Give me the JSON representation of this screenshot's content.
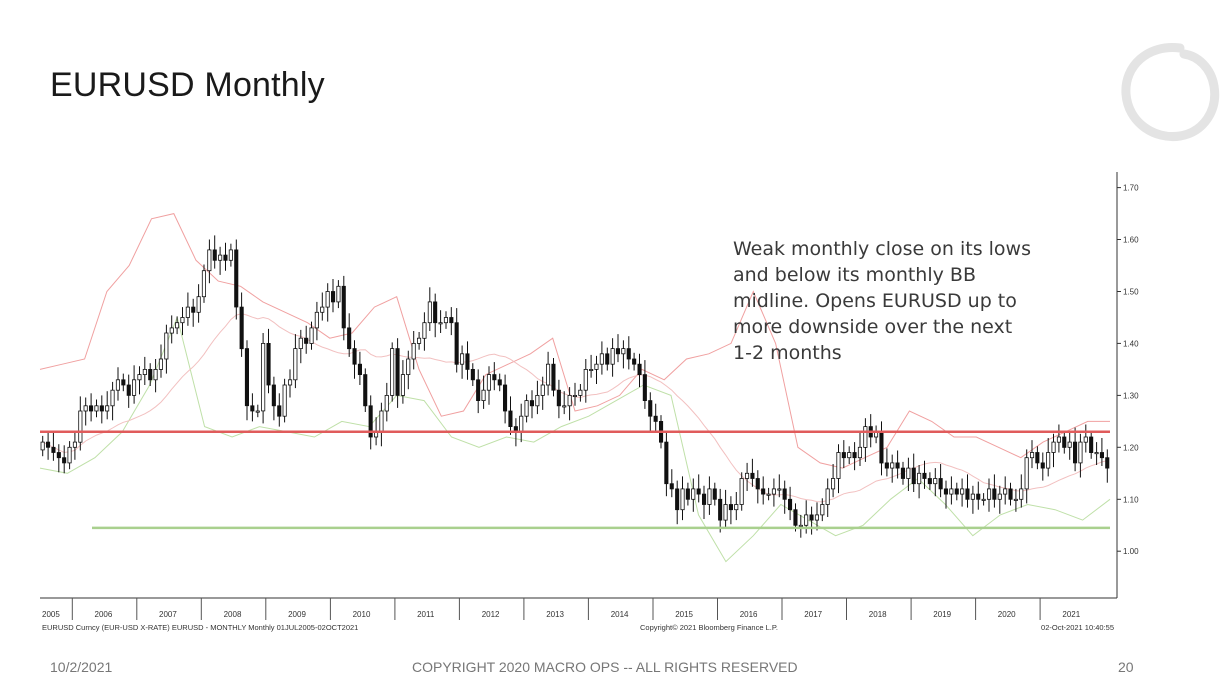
{
  "slide": {
    "title": "EURUSD Monthly",
    "footer_date": "10/2/2021",
    "footer_copyright": "COPYRIGHT 2020 MACRO OPS -- ALL RIGHTS RESERVED",
    "page_number": "20"
  },
  "chart_data": {
    "type": "candlestick",
    "title": "",
    "caption_left": "EURUSD Curncy (EUR-USD X-RATE) EURUSD - MONTHLY  Monthly 01JUL2005-02OCT2021",
    "caption_center": "Copyright© 2021 Bloomberg Finance L.P.",
    "caption_right": "02-Oct-2021 10:40:55",
    "annotation": [
      "Weak monthly close on its lows",
      "and below its monthly BB",
      "midline. Opens EURUSD up to",
      "more downside over the next",
      "1-2 months"
    ],
    "y_ticks": [
      "1.70",
      "1.60",
      "1.50",
      "1.40",
      "1.30",
      "1.20",
      "1.10",
      "1.00"
    ],
    "y_tick_values": [
      1.7,
      1.6,
      1.5,
      1.4,
      1.3,
      1.2,
      1.1,
      1.0
    ],
    "ylim": [
      0.91,
      1.73
    ],
    "x_start_year": 2005,
    "x_start_month": 7,
    "x_labels": [
      "2005",
      "2006",
      "2007",
      "2008",
      "2009",
      "2010",
      "2011",
      "2012",
      "2013",
      "2014",
      "2015",
      "2016",
      "2017",
      "2018",
      "2019",
      "2020",
      "2021"
    ],
    "legend": "none",
    "grid": false,
    "colors": {
      "bull": "#ffffff",
      "bear": "#111111",
      "resistance": "#e05b5b",
      "support": "#a9d08e",
      "bb_upper": "#f0a0a0",
      "bb_lower": "#bfe0a8",
      "bb_mid": "#f2c0c0"
    },
    "horizontal_lines": [
      {
        "name": "resistance",
        "y": 1.23
      },
      {
        "name": "support",
        "y": 1.045
      }
    ],
    "close_series": [
      1.21,
      1.2,
      1.19,
      1.18,
      1.17,
      1.2,
      1.21,
      1.27,
      1.28,
      1.27,
      1.28,
      1.27,
      1.28,
      1.31,
      1.33,
      1.32,
      1.3,
      1.33,
      1.34,
      1.35,
      1.33,
      1.35,
      1.37,
      1.42,
      1.43,
      1.44,
      1.45,
      1.47,
      1.46,
      1.49,
      1.54,
      1.58,
      1.56,
      1.57,
      1.56,
      1.58,
      1.47,
      1.39,
      1.28,
      1.27,
      1.27,
      1.4,
      1.32,
      1.28,
      1.26,
      1.32,
      1.33,
      1.39,
      1.41,
      1.4,
      1.43,
      1.46,
      1.47,
      1.5,
      1.48,
      1.51,
      1.43,
      1.39,
      1.36,
      1.34,
      1.28,
      1.22,
      1.23,
      1.27,
      1.3,
      1.39,
      1.3,
      1.34,
      1.37,
      1.4,
      1.41,
      1.44,
      1.48,
      1.44,
      1.44,
      1.45,
      1.44,
      1.36,
      1.38,
      1.35,
      1.33,
      1.29,
      1.31,
      1.34,
      1.33,
      1.32,
      1.27,
      1.24,
      1.23,
      1.26,
      1.29,
      1.28,
      1.3,
      1.32,
      1.36,
      1.31,
      1.28,
      1.28,
      1.3,
      1.3,
      1.31,
      1.35,
      1.35,
      1.36,
      1.38,
      1.36,
      1.39,
      1.38,
      1.39,
      1.37,
      1.36,
      1.34,
      1.29,
      1.26,
      1.25,
      1.21,
      1.13,
      1.12,
      1.08,
      1.12,
      1.1,
      1.12,
      1.11,
      1.09,
      1.12,
      1.1,
      1.06,
      1.09,
      1.08,
      1.09,
      1.14,
      1.15,
      1.14,
      1.12,
      1.11,
      1.11,
      1.12,
      1.12,
      1.1,
      1.08,
      1.05,
      1.05,
      1.07,
      1.06,
      1.07,
      1.09,
      1.12,
      1.14,
      1.19,
      1.18,
      1.19,
      1.18,
      1.2,
      1.24,
      1.22,
      1.23,
      1.17,
      1.16,
      1.17,
      1.16,
      1.14,
      1.16,
      1.13,
      1.15,
      1.14,
      1.13,
      1.14,
      1.12,
      1.11,
      1.12,
      1.11,
      1.12,
      1.1,
      1.11,
      1.1,
      1.1,
      1.12,
      1.1,
      1.11,
      1.12,
      1.1,
      1.1,
      1.12,
      1.18,
      1.19,
      1.17,
      1.16,
      1.19,
      1.21,
      1.22,
      1.2,
      1.21,
      1.17,
      1.21,
      1.22,
      1.19,
      1.19,
      1.18,
      1.16
    ],
    "bb_upper": [
      1.35,
      1.36,
      1.37,
      1.5,
      1.55,
      1.64,
      1.65,
      1.56,
      1.52,
      1.51,
      1.48,
      1.46,
      1.44,
      1.41,
      1.42,
      1.47,
      1.49,
      1.35,
      1.26,
      1.27,
      1.34,
      1.36,
      1.38,
      1.41,
      1.27,
      1.28,
      1.3,
      1.35,
      1.33,
      1.37,
      1.38,
      1.4,
      1.5,
      1.4,
      1.2,
      1.17,
      1.16,
      1.18,
      1.2,
      1.27,
      1.25,
      1.22,
      1.22,
      1.2,
      1.18,
      1.21,
      1.23,
      1.25,
      1.25
    ],
    "bb_lower": [
      1.16,
      1.15,
      1.18,
      1.23,
      1.32,
      1.45,
      1.24,
      1.22,
      1.24,
      1.23,
      1.22,
      1.25,
      1.24,
      1.3,
      1.29,
      1.22,
      1.2,
      1.22,
      1.21,
      1.24,
      1.26,
      1.29,
      1.32,
      1.3,
      1.07,
      0.98,
      1.03,
      1.09,
      1.06,
      1.03,
      1.05,
      1.1,
      1.14,
      1.09,
      1.03,
      1.07,
      1.09,
      1.08,
      1.06,
      1.1
    ]
  }
}
